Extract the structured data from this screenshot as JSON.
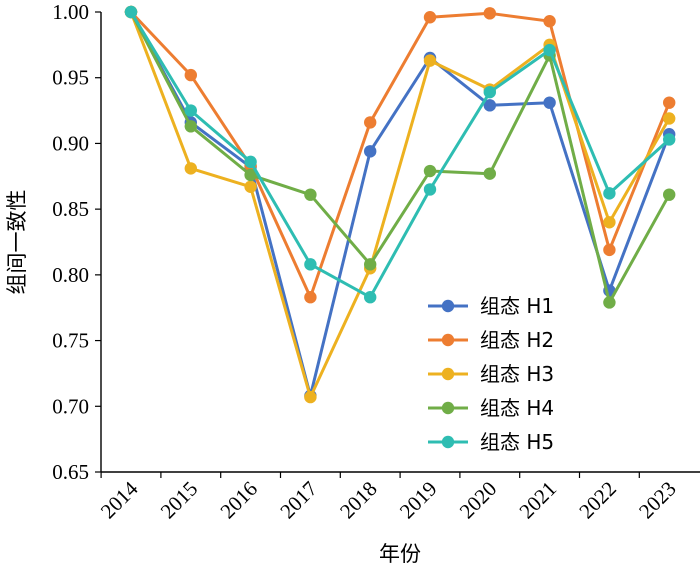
{
  "chart_data": {
    "type": "line",
    "title": "",
    "xlabel": "年份",
    "ylabel": "组间一致性",
    "categories": [
      "2014",
      "2015",
      "2016",
      "2017",
      "2018",
      "2019",
      "2020",
      "2021",
      "2022",
      "2023"
    ],
    "yticks": [
      "0.65",
      "0.70",
      "0.75",
      "0.80",
      "0.85",
      "0.90",
      "0.95",
      "1.00"
    ],
    "ylim": [
      0.65,
      1.0
    ],
    "grid": false,
    "legend_position": "bottom-right",
    "series": [
      {
        "name": "组态 H1",
        "color": "#4472C4",
        "values": [
          1.0,
          0.916,
          0.882,
          0.708,
          0.894,
          0.965,
          0.929,
          0.931,
          0.788,
          0.907
        ]
      },
      {
        "name": "组态 H2",
        "color": "#ED7D31",
        "values": [
          1.0,
          0.952,
          0.883,
          0.783,
          0.916,
          0.996,
          0.999,
          0.993,
          0.819,
          0.931
        ]
      },
      {
        "name": "组态 H3",
        "color": "#EDB120",
        "values": [
          1.0,
          0.881,
          0.867,
          0.707,
          0.805,
          0.963,
          0.941,
          0.975,
          0.84,
          0.919
        ]
      },
      {
        "name": "组态 H4",
        "color": "#70AD47",
        "values": [
          1.0,
          0.913,
          0.876,
          0.861,
          0.808,
          0.879,
          0.877,
          0.967,
          0.779,
          0.861
        ]
      },
      {
        "name": "组态 H5",
        "color": "#2EBDB2",
        "values": [
          1.0,
          0.925,
          0.886,
          0.808,
          0.783,
          0.865,
          0.939,
          0.971,
          0.862,
          0.903
        ]
      }
    ]
  }
}
